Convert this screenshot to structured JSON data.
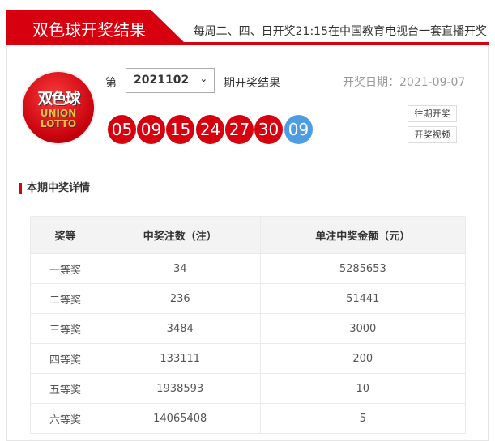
{
  "header": {
    "title": "双色球开奖结果",
    "schedule": "每周二、四、日开奖21:15在中国教育电视台一套直播开奖",
    "accent": "#d7000f"
  },
  "logo": {
    "cn": "双色球",
    "line1": "UNION",
    "line2": "LOTTO"
  },
  "draw": {
    "prefix": "第",
    "issue": "2021102",
    "suffix": "期开奖结果",
    "date": "开奖日期：2021-09-07",
    "red_balls": [
      "05",
      "09",
      "15",
      "24",
      "27",
      "30"
    ],
    "blue_ball": "09",
    "red_color": "#d7000f",
    "blue_color": "#4e9de3"
  },
  "buttons": {
    "history": "往期开奖",
    "video": "开奖视频"
  },
  "section_title": "本期中奖详情",
  "table": {
    "headers": [
      "奖等",
      "中奖注数（注）",
      "单注中奖金额（元）"
    ],
    "rows": [
      [
        "一等奖",
        "34",
        "5285653"
      ],
      [
        "二等奖",
        "236",
        "51441"
      ],
      [
        "三等奖",
        "3484",
        "3000"
      ],
      [
        "四等奖",
        "133111",
        "200"
      ],
      [
        "五等奖",
        "1938593",
        "10"
      ],
      [
        "六等奖",
        "14065408",
        "5"
      ]
    ]
  }
}
